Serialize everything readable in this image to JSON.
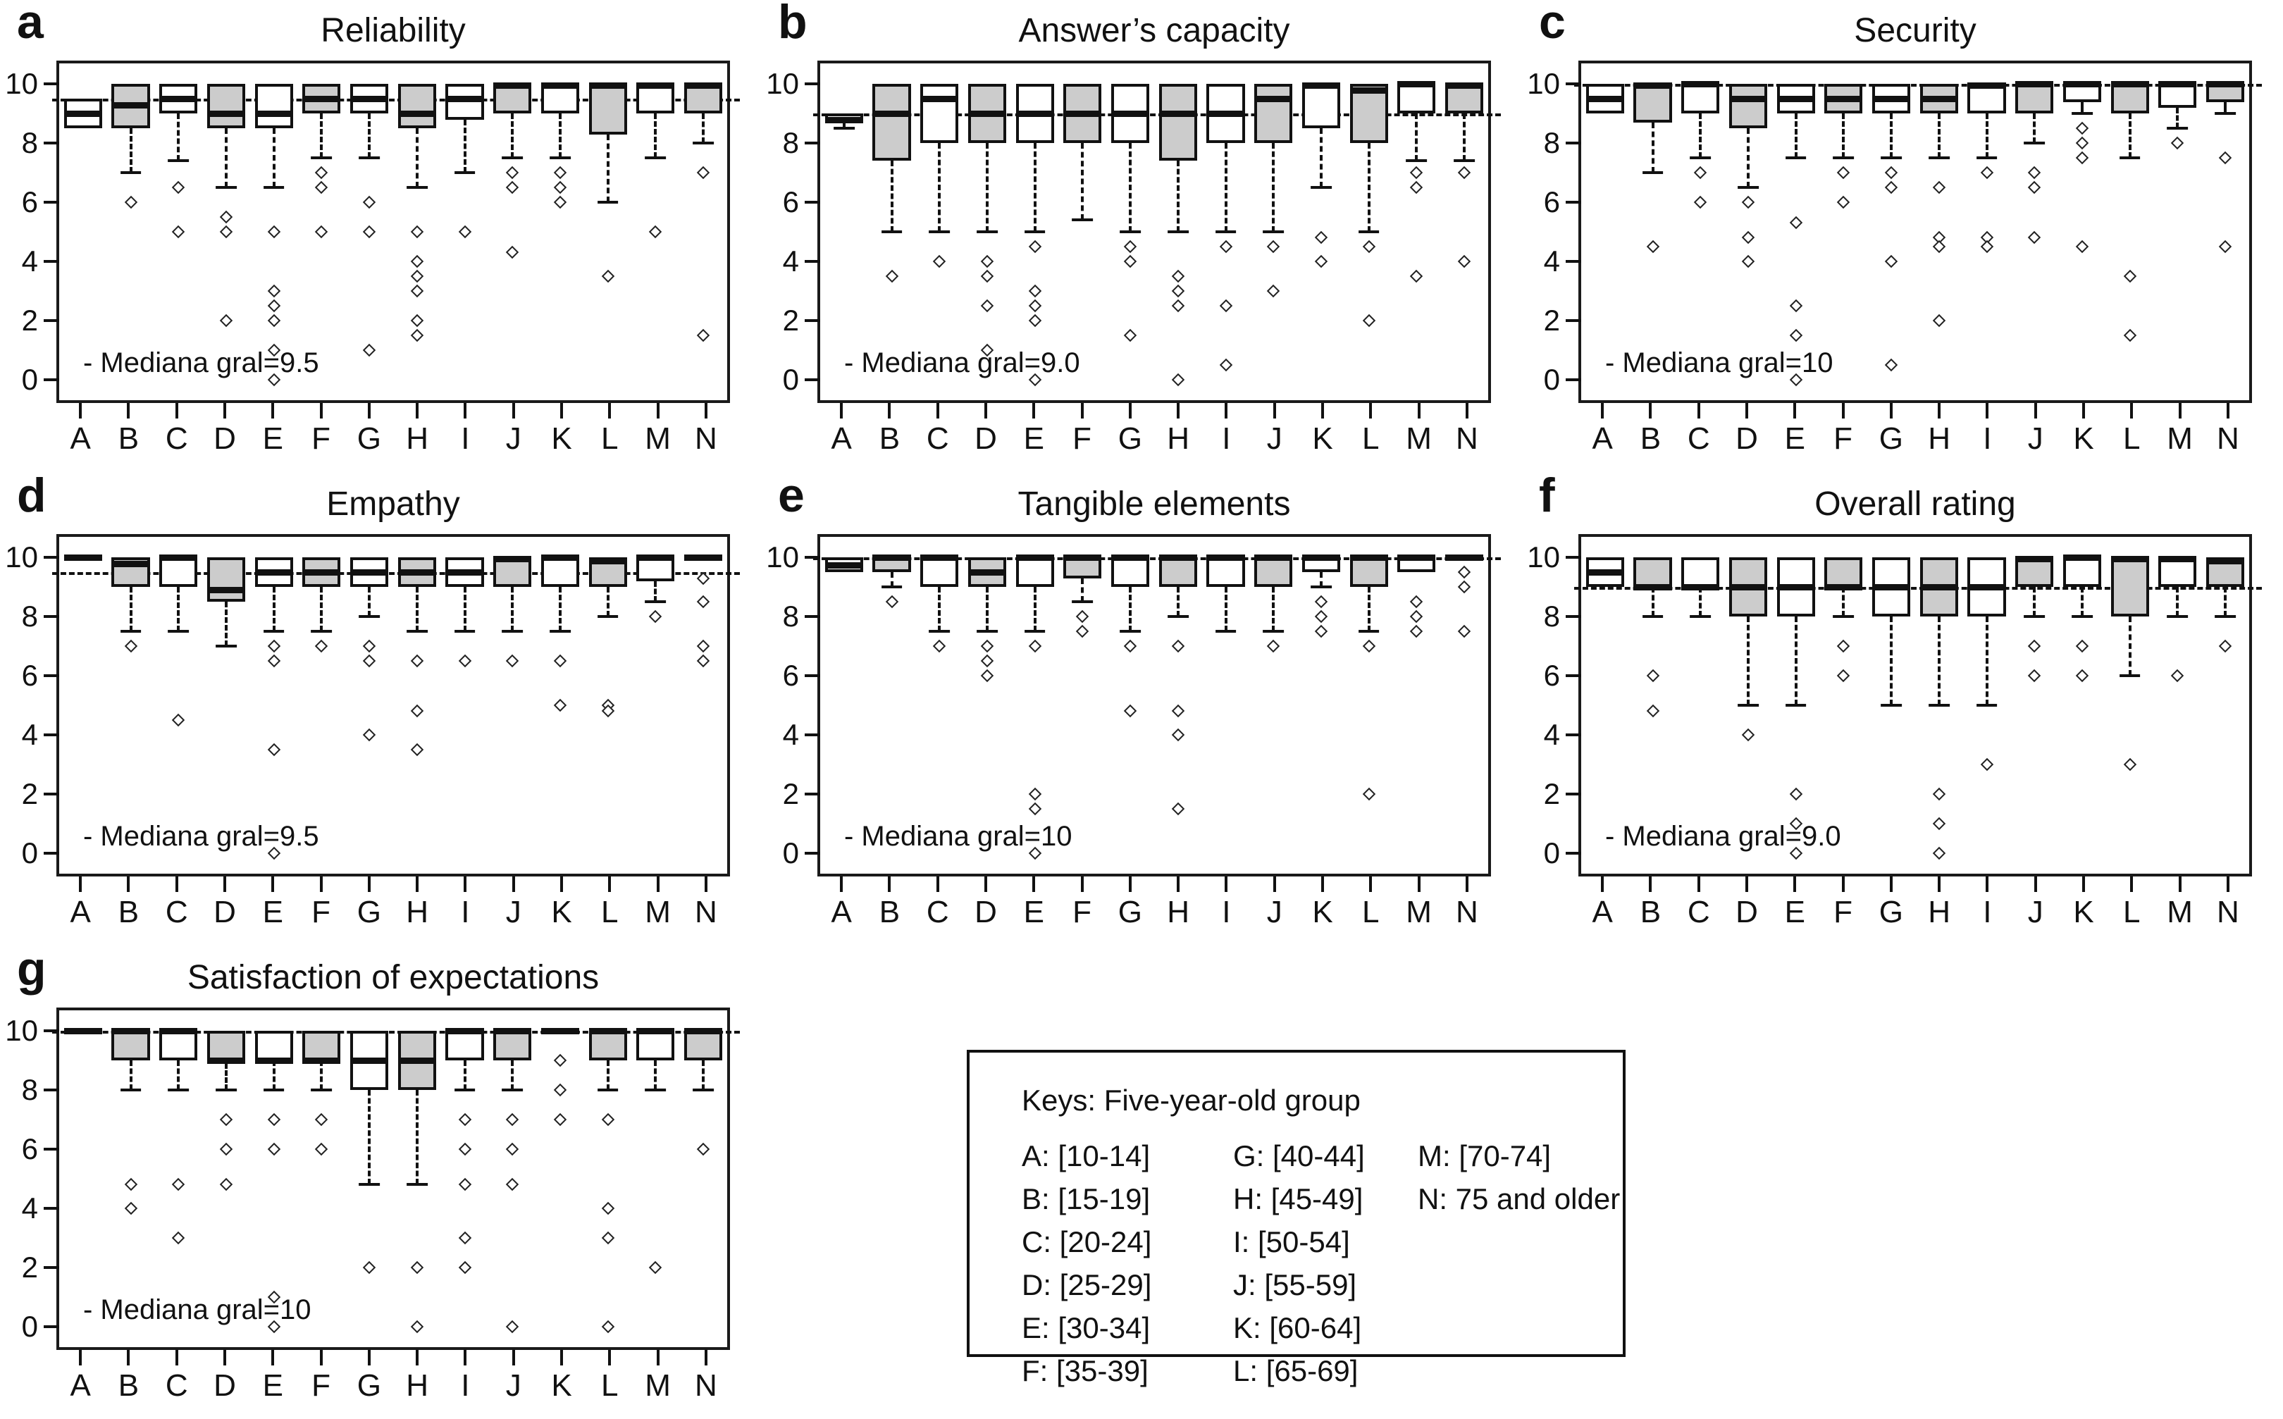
{
  "figure": {
    "background": "#ffffff",
    "box_fill_gray": "#cccccc",
    "box_fill_white": "#ffffff",
    "line_color": "#111111"
  },
  "y_axis": {
    "ticks": [
      "10",
      "8",
      "6",
      "4",
      "2",
      "0"
    ],
    "tick_values": [
      10,
      8,
      6,
      4,
      2,
      0
    ],
    "ylim": [
      0,
      10
    ]
  },
  "legend": {
    "title": "Keys: Five-year-old group",
    "columns": [
      [
        "A: [10-14]",
        "B: [15-19]",
        "C: [20-24]",
        "D: [25-29]",
        "E: [30-34]",
        "F: [35-39]"
      ],
      [
        "G: [40-44]",
        "H: [45-49]",
        "I: [50-54]",
        "J: [55-59]",
        "K: [60-64]",
        "L: [65-69]"
      ],
      [
        "M: [70-74]",
        "N: 75 and older"
      ]
    ]
  },
  "box_format": "[whisker_low, q1, median, q3, whisker_high, [outliers]]",
  "chart_data": [
    {
      "type": "boxplot",
      "panel_letter": "a",
      "title": "Reliability",
      "annotation": "- Mediana gral=9.5",
      "overall_median": 9.5,
      "categories": [
        "A",
        "B",
        "C",
        "D",
        "E",
        "F",
        "G",
        "H",
        "I",
        "J",
        "K",
        "L",
        "M",
        "N"
      ],
      "boxes": [
        [
          8.5,
          8.5,
          9.0,
          9.5,
          9.5,
          []
        ],
        [
          7.0,
          8.5,
          9.3,
          10,
          10,
          [
            6
          ]
        ],
        [
          7.4,
          9.0,
          9.5,
          10,
          10,
          [
            6.5,
            5
          ]
        ],
        [
          6.5,
          8.5,
          9.0,
          10,
          10,
          [
            5.5,
            5,
            2
          ]
        ],
        [
          6.5,
          8.5,
          9.0,
          10,
          10,
          [
            5,
            3,
            2.5,
            2,
            1,
            0
          ]
        ],
        [
          7.5,
          9.0,
          9.5,
          10,
          10,
          [
            7,
            6.5,
            5
          ]
        ],
        [
          7.5,
          9.0,
          9.5,
          10,
          10,
          [
            6,
            5,
            1
          ]
        ],
        [
          6.5,
          8.5,
          9.0,
          10,
          10,
          [
            5,
            4,
            3.5,
            3,
            2,
            1.5
          ]
        ],
        [
          7.0,
          8.8,
          9.5,
          10,
          10,
          [
            5
          ]
        ],
        [
          7.5,
          9.0,
          9.95,
          10,
          10,
          [
            7,
            6.5,
            4.3
          ]
        ],
        [
          7.5,
          9.0,
          9.95,
          10,
          10,
          [
            7,
            6.5,
            6
          ]
        ],
        [
          6.0,
          8.3,
          9.95,
          10,
          10,
          [
            3.5
          ]
        ],
        [
          7.5,
          9.0,
          9.95,
          10,
          10,
          [
            5
          ]
        ],
        [
          8.0,
          9.0,
          9.95,
          10,
          10,
          [
            7,
            1.5
          ]
        ]
      ]
    },
    {
      "type": "boxplot",
      "panel_letter": "b",
      "title": "Answer’s capacity",
      "annotation": "- Mediana gral=9.0",
      "overall_median": 9.0,
      "categories": [
        "A",
        "B",
        "C",
        "D",
        "E",
        "F",
        "G",
        "H",
        "I",
        "J",
        "K",
        "L",
        "M",
        "N"
      ],
      "boxes": [
        [
          8.5,
          8.7,
          8.8,
          9.0,
          9.0,
          []
        ],
        [
          5.0,
          7.4,
          9.0,
          10,
          10,
          [
            3.5
          ]
        ],
        [
          5.0,
          8.0,
          9.5,
          10,
          10,
          [
            4
          ]
        ],
        [
          5.0,
          8.0,
          9.0,
          10,
          10,
          [
            4,
            3.5,
            2.5,
            1
          ]
        ],
        [
          5.0,
          8.0,
          9.0,
          10,
          10,
          [
            4.5,
            3,
            2.5,
            2,
            0
          ]
        ],
        [
          5.4,
          8.0,
          9.0,
          10,
          10,
          []
        ],
        [
          5.0,
          8.0,
          9.0,
          10,
          10,
          [
            4.5,
            4,
            1.5
          ]
        ],
        [
          5.0,
          7.4,
          9.0,
          10,
          10,
          [
            3.5,
            3,
            2.5,
            0
          ]
        ],
        [
          5.0,
          8.0,
          9.0,
          10,
          10,
          [
            4.5,
            2.5,
            0.5
          ]
        ],
        [
          5.0,
          8.0,
          9.5,
          10,
          10,
          [
            4.5,
            3
          ]
        ],
        [
          6.5,
          8.5,
          9.95,
          10,
          10,
          [
            4.8,
            4
          ]
        ],
        [
          5.0,
          8.0,
          9.8,
          10,
          10,
          [
            4.5,
            2
          ]
        ],
        [
          7.4,
          9.0,
          10,
          10,
          10,
          [
            7,
            6.5,
            3.5
          ]
        ],
        [
          7.4,
          9.0,
          9.95,
          10,
          10,
          [
            7,
            4
          ]
        ]
      ]
    },
    {
      "type": "boxplot",
      "panel_letter": "c",
      "title": "Security",
      "annotation": "- Mediana gral=10",
      "overall_median": 10,
      "categories": [
        "A",
        "B",
        "C",
        "D",
        "E",
        "F",
        "G",
        "H",
        "I",
        "J",
        "K",
        "L",
        "M",
        "N"
      ],
      "boxes": [
        [
          9.0,
          9.0,
          9.5,
          10,
          10,
          []
        ],
        [
          7.0,
          8.7,
          9.95,
          10,
          10,
          [
            4.5
          ]
        ],
        [
          7.5,
          9.0,
          10,
          10,
          10,
          [
            7,
            6
          ]
        ],
        [
          6.5,
          8.5,
          9.5,
          10,
          10,
          [
            6,
            4.8,
            4
          ]
        ],
        [
          7.5,
          9.0,
          9.5,
          10,
          10,
          [
            5.3,
            2.5,
            1.5,
            0
          ]
        ],
        [
          7.5,
          9.0,
          9.5,
          10,
          10,
          [
            7,
            6
          ]
        ],
        [
          7.5,
          9.0,
          9.5,
          10,
          10,
          [
            7,
            6.5,
            4,
            0.5
          ]
        ],
        [
          7.5,
          9.0,
          9.5,
          10,
          10,
          [
            6.5,
            4.8,
            4.5,
            2
          ]
        ],
        [
          7.5,
          9.0,
          9.95,
          10,
          10,
          [
            7,
            4.8,
            4.5
          ]
        ],
        [
          8.0,
          9.0,
          10,
          10,
          10,
          [
            7,
            6.5,
            4.8
          ]
        ],
        [
          9.0,
          9.4,
          10,
          10,
          10,
          [
            8.5,
            8,
            7.5,
            4.5
          ]
        ],
        [
          7.5,
          9.0,
          10,
          10,
          10,
          [
            3.5,
            1.5
          ]
        ],
        [
          8.5,
          9.2,
          10,
          10,
          10,
          [
            8
          ]
        ],
        [
          9.0,
          9.4,
          10,
          10,
          10,
          [
            7.5,
            4.5
          ]
        ]
      ]
    },
    {
      "type": "boxplot",
      "panel_letter": "d",
      "title": "Empathy",
      "annotation": "- Mediana gral=9.5",
      "overall_median": 9.5,
      "categories": [
        "A",
        "B",
        "C",
        "D",
        "E",
        "F",
        "G",
        "H",
        "I",
        "J",
        "K",
        "L",
        "M",
        "N"
      ],
      "boxes": [
        [
          10,
          10,
          10,
          10,
          10,
          []
        ],
        [
          7.5,
          9.0,
          9.8,
          10,
          10,
          [
            7
          ]
        ],
        [
          7.5,
          9.0,
          10,
          10,
          10,
          [
            4.5
          ]
        ],
        [
          7.0,
          8.5,
          8.9,
          10,
          10,
          []
        ],
        [
          7.5,
          9.0,
          9.5,
          10,
          10,
          [
            7,
            6.5,
            3.5,
            0
          ]
        ],
        [
          7.5,
          9.0,
          9.5,
          10,
          10,
          [
            7
          ]
        ],
        [
          8.0,
          9.0,
          9.5,
          10,
          10,
          [
            7,
            6.5,
            4
          ]
        ],
        [
          7.5,
          9.0,
          9.5,
          10,
          10,
          [
            6.5,
            4.8,
            3.5
          ]
        ],
        [
          7.5,
          9.0,
          9.5,
          10,
          10,
          [
            6.5
          ]
        ],
        [
          7.5,
          9.0,
          9.95,
          10,
          10,
          [
            6.5
          ]
        ],
        [
          7.5,
          9.0,
          10,
          10,
          10,
          [
            6.5,
            5
          ]
        ],
        [
          8.0,
          9.0,
          9.9,
          10,
          10,
          [
            5,
            4.8
          ]
        ],
        [
          8.5,
          9.2,
          10,
          10,
          10,
          [
            8
          ]
        ],
        [
          10,
          10,
          10,
          10,
          10,
          [
            9.3,
            8.5,
            7,
            6.5
          ]
        ]
      ]
    },
    {
      "type": "boxplot",
      "panel_letter": "e",
      "title": "Tangible elements",
      "annotation": "- Mediana gral=10",
      "overall_median": 10,
      "categories": [
        "A",
        "B",
        "C",
        "D",
        "E",
        "F",
        "G",
        "H",
        "I",
        "J",
        "K",
        "L",
        "M",
        "N"
      ],
      "boxes": [
        [
          9.5,
          9.5,
          9.75,
          10,
          10,
          []
        ],
        [
          9.0,
          9.5,
          10,
          10,
          10,
          [
            8.5
          ]
        ],
        [
          7.5,
          9.0,
          10,
          10,
          10,
          [
            7
          ]
        ],
        [
          7.5,
          9.0,
          9.5,
          10,
          10,
          [
            7,
            6.5,
            6
          ]
        ],
        [
          7.5,
          9.0,
          10,
          10,
          10,
          [
            7,
            2,
            1.5,
            0
          ]
        ],
        [
          8.5,
          9.3,
          10,
          10,
          10,
          [
            8,
            7.5
          ]
        ],
        [
          7.5,
          9.0,
          10,
          10,
          10,
          [
            7,
            4.8
          ]
        ],
        [
          8.0,
          9.0,
          10,
          10,
          10,
          [
            7,
            4.8,
            4,
            1.5
          ]
        ],
        [
          7.5,
          9.0,
          10,
          10,
          10,
          []
        ],
        [
          7.5,
          9.0,
          10,
          10,
          10,
          [
            7
          ]
        ],
        [
          9.0,
          9.5,
          10,
          10,
          10,
          [
            8.5,
            8,
            7.5
          ]
        ],
        [
          7.5,
          9.0,
          10,
          10,
          10,
          [
            7,
            2
          ]
        ],
        [
          9.5,
          9.5,
          10,
          10,
          10,
          [
            8.5,
            8,
            7.5
          ]
        ],
        [
          10,
          10,
          10,
          10,
          10,
          [
            9.5,
            9,
            7.5
          ]
        ]
      ]
    },
    {
      "type": "boxplot",
      "panel_letter": "f",
      "title": "Overall rating",
      "annotation": "- Mediana gral=9.0",
      "overall_median": 9.0,
      "categories": [
        "A",
        "B",
        "C",
        "D",
        "E",
        "F",
        "G",
        "H",
        "I",
        "J",
        "K",
        "L",
        "M",
        "N"
      ],
      "boxes": [
        [
          9.0,
          9.0,
          9.5,
          10,
          10,
          []
        ],
        [
          8.0,
          9.0,
          9.0,
          10,
          10,
          [
            6,
            4.8
          ]
        ],
        [
          8.0,
          9.0,
          9.0,
          10,
          10,
          []
        ],
        [
          5.0,
          8.0,
          9.0,
          10,
          10,
          [
            4
          ]
        ],
        [
          5.0,
          8.0,
          9.0,
          10,
          10,
          [
            2,
            1,
            0
          ]
        ],
        [
          8.0,
          9.0,
          9.0,
          10,
          10,
          [
            7,
            6
          ]
        ],
        [
          5.0,
          8.0,
          9.0,
          10,
          10,
          []
        ],
        [
          5.0,
          8.0,
          9.0,
          10,
          10,
          [
            2,
            1,
            0
          ]
        ],
        [
          5.0,
          8.0,
          9.0,
          10,
          10,
          [
            3
          ]
        ],
        [
          8.0,
          9.0,
          9.95,
          10,
          10,
          [
            7,
            6
          ]
        ],
        [
          8.0,
          9.0,
          10,
          10,
          10,
          [
            7,
            6
          ]
        ],
        [
          6.0,
          8.0,
          9.95,
          10,
          10,
          [
            3
          ]
        ],
        [
          8.0,
          9.0,
          9.95,
          10,
          10,
          [
            6
          ]
        ],
        [
          8.0,
          9.0,
          9.9,
          10,
          10,
          [
            7
          ]
        ]
      ]
    },
    {
      "type": "boxplot",
      "panel_letter": "g",
      "title": "Satisfaction of expectations",
      "annotation": "- Mediana gral=10",
      "overall_median": 10,
      "categories": [
        "A",
        "B",
        "C",
        "D",
        "E",
        "F",
        "G",
        "H",
        "I",
        "J",
        "K",
        "L",
        "M",
        "N"
      ],
      "boxes": [
        [
          10,
          10,
          10,
          10,
          10,
          []
        ],
        [
          8.0,
          9.0,
          10,
          10,
          10,
          [
            4.8,
            4
          ]
        ],
        [
          8.0,
          9.0,
          10,
          10,
          10,
          [
            4.8,
            3
          ]
        ],
        [
          8.0,
          8.9,
          9.0,
          10,
          10,
          [
            7,
            6,
            4.8
          ]
        ],
        [
          8.0,
          9.0,
          9.0,
          10,
          10,
          [
            7,
            6,
            1,
            0
          ]
        ],
        [
          8.0,
          9.0,
          9.0,
          10,
          10,
          [
            7,
            6
          ]
        ],
        [
          4.8,
          8.0,
          9.0,
          10,
          10,
          [
            2
          ]
        ],
        [
          4.8,
          8.0,
          9.0,
          10,
          10,
          [
            2,
            0
          ]
        ],
        [
          8.0,
          9.0,
          10,
          10,
          10,
          [
            7,
            6,
            4.8,
            3,
            2
          ]
        ],
        [
          8.0,
          9.0,
          10,
          10,
          10,
          [
            7,
            6,
            4.8,
            0
          ]
        ],
        [
          10,
          10,
          10,
          10,
          10,
          [
            9,
            8,
            7
          ]
        ],
        [
          8.0,
          9.0,
          10,
          10,
          10,
          [
            7,
            4,
            3,
            0
          ]
        ],
        [
          8.0,
          9.0,
          10,
          10,
          10,
          [
            2
          ]
        ],
        [
          8.0,
          9.0,
          10,
          10,
          10,
          [
            6
          ]
        ]
      ]
    }
  ]
}
